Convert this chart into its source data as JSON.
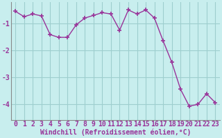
{
  "x": [
    0,
    1,
    2,
    3,
    4,
    5,
    6,
    7,
    8,
    9,
    10,
    11,
    12,
    13,
    14,
    15,
    16,
    17,
    18,
    19,
    20,
    21,
    22,
    23
  ],
  "y": [
    -0.55,
    -0.75,
    -0.65,
    -0.72,
    -1.42,
    -1.52,
    -1.52,
    -1.05,
    -0.8,
    -0.7,
    -0.6,
    -0.65,
    -1.25,
    -0.5,
    -0.65,
    -0.5,
    -0.8,
    -1.65,
    -2.45,
    -3.45,
    -4.08,
    -4.02,
    -3.62,
    -3.95
  ],
  "line_color": "#993399",
  "marker": "+",
  "marker_size": 4,
  "marker_lw": 1.2,
  "bg_color": "#c8eeee",
  "grid_color": "#9ecece",
  "xlabel": "Windchill (Refroidissement éolien,°C)",
  "xlabel_fontsize": 7,
  "xlabel_color": "#993399",
  "tick_color": "#993399",
  "xtick_labels": [
    "0",
    "1",
    "2",
    "3",
    "4",
    "5",
    "6",
    "7",
    "8",
    "9",
    "10",
    "11",
    "12",
    "13",
    "14",
    "15",
    "16",
    "17",
    "18",
    "19",
    "20",
    "21",
    "22",
    "23"
  ],
  "yticks": [
    -4,
    -3,
    -2,
    -1
  ],
  "ylim": [
    -4.6,
    -0.2
  ],
  "xlim": [
    -0.5,
    23.5
  ],
  "tick_fontsize": 7,
  "line_width": 1.0,
  "spine_color": "#888888"
}
